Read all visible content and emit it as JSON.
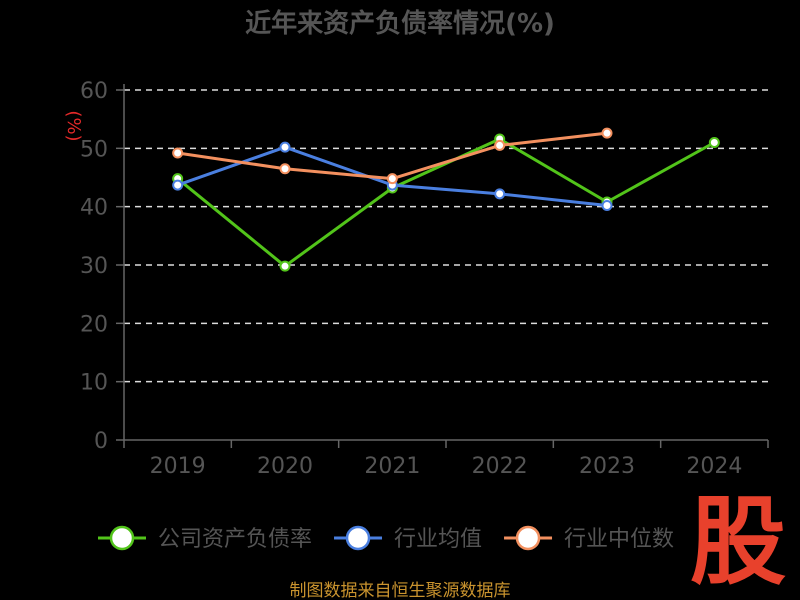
{
  "chart_data": {
    "type": "line",
    "title": "近年来资产负债率情况(%)",
    "ylabel": "(%)",
    "xlabel": "",
    "categories": [
      "2019",
      "2020",
      "2021",
      "2022",
      "2023",
      "2024"
    ],
    "ylim": [
      0,
      60
    ],
    "yticks": [
      "0",
      "10",
      "20",
      "30",
      "40",
      "50",
      "60"
    ],
    "grid": true,
    "legend_position": "bottom",
    "series": [
      {
        "name": "公司资产负债率",
        "color": "#52c41a",
        "values": [
          44.8,
          29.8,
          43.2,
          51.6,
          40.8,
          51.0
        ]
      },
      {
        "name": "行业均值",
        "color": "#4a7fe0",
        "values": [
          43.7,
          50.2,
          43.7,
          42.2,
          40.2,
          null
        ]
      },
      {
        "name": "行业中位数",
        "color": "#f3905f",
        "values": [
          49.2,
          46.5,
          44.8,
          50.5,
          52.6,
          null
        ]
      }
    ]
  },
  "source": "制图数据来自恒生聚源数据库",
  "watermark": "股"
}
